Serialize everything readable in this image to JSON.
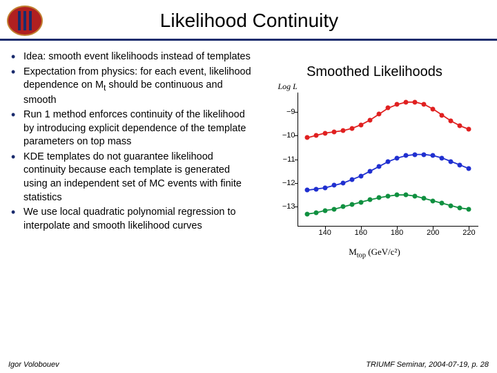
{
  "header": {
    "title": "Likelihood Continuity"
  },
  "bullets": [
    "Idea: smooth event likelihoods instead of templates",
    "Expectation from physics: for each event, likelihood dependence on M_t should be continuous and smooth",
    "Run 1 method enforces continuity of the likelihood by introducing explicit dependence of the template parameters on top mass",
    "KDE templates do not guarantee likelihood continuity because each template is generated using an independent set of MC events with finite statistics",
    "We use local quadratic polynomial regression to interpolate and smooth likelihood curves"
  ],
  "chart": {
    "title": "Smoothed Likelihoods",
    "y_axis_label": "Log L",
    "x_axis_label": "M_top (GeV/c²)",
    "xlim": [
      125,
      225
    ],
    "ylim": [
      -13.8,
      -8.2
    ],
    "yticks": [
      -9,
      -10,
      -11,
      -12,
      -13
    ],
    "xticks": [
      140,
      160,
      180,
      200,
      220
    ],
    "series": [
      {
        "name": "red",
        "color": "#e02020",
        "x": [
          130,
          135,
          140,
          145,
          150,
          155,
          160,
          165,
          170,
          175,
          180,
          185,
          190,
          195,
          200,
          205,
          210,
          215,
          220
        ],
        "y": [
          -10.1,
          -10.0,
          -9.9,
          -9.85,
          -9.8,
          -9.7,
          -9.55,
          -9.35,
          -9.1,
          -8.85,
          -8.7,
          -8.6,
          -8.6,
          -8.7,
          -8.9,
          -9.15,
          -9.4,
          -9.6,
          -9.75
        ]
      },
      {
        "name": "blue",
        "color": "#2030d0",
        "x": [
          130,
          135,
          140,
          145,
          150,
          155,
          160,
          165,
          170,
          175,
          180,
          185,
          190,
          195,
          200,
          205,
          210,
          215,
          220
        ],
        "y": [
          -12.3,
          -12.25,
          -12.2,
          -12.1,
          -12.0,
          -11.85,
          -11.7,
          -11.5,
          -11.3,
          -11.1,
          -10.95,
          -10.85,
          -10.8,
          -10.8,
          -10.85,
          -10.95,
          -11.1,
          -11.25,
          -11.4
        ]
      },
      {
        "name": "green",
        "color": "#109040",
        "x": [
          130,
          135,
          140,
          145,
          150,
          155,
          160,
          165,
          170,
          175,
          180,
          185,
          190,
          195,
          200,
          205,
          210,
          215,
          220
        ],
        "y": [
          -13.3,
          -13.25,
          -13.15,
          -13.1,
          -13.0,
          -12.9,
          -12.8,
          -12.7,
          -12.62,
          -12.55,
          -12.5,
          -12.5,
          -12.55,
          -12.65,
          -12.75,
          -12.85,
          -12.95,
          -13.05,
          -13.1
        ]
      }
    ],
    "background_color": "#ffffff",
    "axis_color": "#000000",
    "tick_fontsize": 11,
    "label_fontsize": 13,
    "marker_size": 7,
    "line_width": 1.8
  },
  "footer": {
    "author": "Igor Volobouev",
    "venue": "TRIUMF Seminar, 2004-07-19, p. 28"
  },
  "colors": {
    "rule": "#1a2b6d",
    "logo_bg": "#b02020",
    "logo_border": "#c08030"
  }
}
